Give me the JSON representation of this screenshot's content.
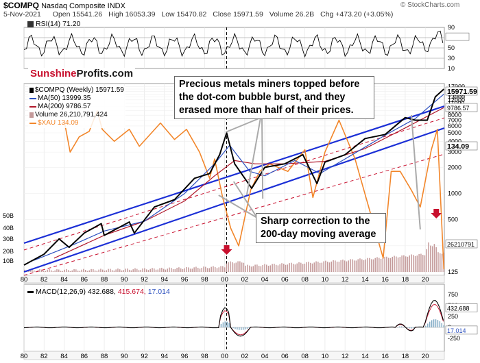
{
  "header": {
    "symbol": "$COMPQ",
    "name": "Nasdaq Composite INDX",
    "date": "5-Nov-2021",
    "open_label": "Open",
    "open": "15541.26",
    "high_label": "High",
    "high": "16053.39",
    "low_label": "Low",
    "low": "15470.82",
    "close_label": "Close",
    "close": "15971.59",
    "volume_label": "Volume",
    "volume": "26.2B",
    "chg_label": "Chg",
    "chg": "+473.20 (+3.05%)",
    "copyright": "© StockCharts.com"
  },
  "brand": {
    "part1": "Sunshine",
    "part2": "Profits.com"
  },
  "rsi_label": "RSI(14) 71.20",
  "legend": [
    {
      "text": "$COMPQ (Weekly) 15971.59",
      "color": "#000000",
      "kind": "candle"
    },
    {
      "text": "MA(50) 13999.35",
      "color": "#2b4fbf",
      "kind": "line"
    },
    {
      "text": "MA(200) 9786.57",
      "color": "#b0172a",
      "kind": "line"
    },
    {
      "text": "Volume 26,210,791,424",
      "color": "#9e6b6b",
      "kind": "box"
    },
    {
      "text": "$XAU 134.09",
      "color": "#f2862a",
      "kind": "line"
    }
  ],
  "macd": {
    "label": "MACD(12,26,9)",
    "v1": "432.688,",
    "v2": "415.674,",
    "v3": "17.014",
    "c1": "#000000",
    "c2": "#c8102e",
    "c3": "#2b4fbf"
  },
  "annotations": {
    "top": [
      "Precious metals miners topped before",
      "the dot-com bubble burst, and they",
      "erased more than half of their prices."
    ],
    "bottom": [
      "Sharp correction to the",
      "200-day moving average"
    ]
  },
  "colors": {
    "price": "#000000",
    "ma50": "#2b4fbf",
    "ma200": "#b0172a",
    "xau": "#f2862a",
    "volume": "#c49a9a",
    "arrow": "#c8102e",
    "channel": "#1b2fd6",
    "dashed": "#c8102e"
  },
  "chart_data": [
    {
      "type": "line",
      "panel": "RSI",
      "series": [
        {
          "name": "RSI(14)",
          "last": 71.2
        }
      ],
      "y_ticks": [
        "90",
        "71.20",
        "50",
        "30",
        "10"
      ],
      "yticks_numeric": [
        90,
        70,
        50,
        30,
        10
      ]
    },
    {
      "type": "line",
      "panel": "price",
      "scale": "log",
      "x_ticks": [
        "80",
        "82",
        "84",
        "86",
        "88",
        "90",
        "92",
        "94",
        "96",
        "98",
        "00",
        "02",
        "04",
        "06",
        "08",
        "10",
        "12",
        "14",
        "16",
        "18",
        "20"
      ],
      "y_ticks_right": [
        "17000",
        "16000",
        "15000",
        "14000",
        "13000",
        "12000",
        "11000",
        "10000",
        "9000",
        "8000",
        "7000",
        "6000",
        "5000",
        "4000",
        "3000",
        "2000",
        "1000",
        "500",
        "250",
        "125"
      ],
      "y_ticks_left_volume": [
        "50B",
        "40B",
        "30B",
        "20B",
        "10B"
      ],
      "tag_labels": {
        "price": "15971.59",
        "ma50": "13999.35",
        "ma200": "9786.57",
        "xau": "134.09",
        "volume": "26210791"
      },
      "series": [
        {
          "name": "$COMPQ (Weekly)",
          "x": [
            1980,
            1982,
            1983.5,
            1984.5,
            1986,
            1987.7,
            1988,
            1990.5,
            1991,
            1993,
            1995,
            1997,
            1998.5,
            1999.5,
            2000.2,
            2001,
            2002.7,
            2004,
            2006,
            2007.8,
            2009.2,
            2010,
            2012,
            2014,
            2016,
            2018,
            2019,
            2020.2,
            2021,
            2021.85
          ],
          "y": [
            150,
            200,
            300,
            240,
            350,
            450,
            330,
            470,
            350,
            700,
            850,
            1500,
            1700,
            2800,
            5000,
            2200,
            1150,
            2000,
            2200,
            2800,
            1300,
            2300,
            2800,
            4300,
            4800,
            7500,
            7000,
            7000,
            13000,
            15971.59
          ]
        },
        {
          "name": "MA(50)",
          "x": [
            1981,
            1985,
            1988,
            1992,
            1996,
            1999,
            2000.5,
            2002.5,
            2004,
            2007,
            2009.5,
            2012,
            2016,
            2019,
            2021.85
          ],
          "y": [
            170,
            260,
            370,
            480,
            1000,
            2200,
            3600,
            1800,
            1600,
            2400,
            1700,
            2500,
            4700,
            7300,
            13999.35
          ]
        },
        {
          "name": "MA(200)",
          "x": [
            1983,
            1988,
            1992,
            1996,
            1999,
            2001,
            2003,
            2006,
            2010,
            2014,
            2018,
            2021.85
          ],
          "y": [
            180,
            330,
            480,
            820,
            1600,
            2400,
            2200,
            2200,
            2350,
            3300,
            5700,
            9786.57
          ]
        },
        {
          "name": "$XAU",
          "x": [
            1984,
            1984.6,
            1985.5,
            1986.5,
            1987.3,
            1987.8,
            1989,
            1990.5,
            1991.5,
            1993.6,
            1995,
            1996.2,
            1997.5,
            1998.5,
            1999,
            1999.8,
            2000.6,
            2001.4,
            2002.6,
            2003.5,
            2004.5,
            2006.3,
            2008,
            2008.8,
            2010,
            2011.4,
            2013,
            2015.8,
            2016.6,
            2017.5,
            2018.6,
            2019.5,
            2020.6,
            2021.2,
            2021.85
          ],
          "y": [
            7000,
            3000,
            4500,
            5200,
            9000,
            5500,
            4000,
            5500,
            3500,
            6500,
            4200,
            5500,
            3000,
            1500,
            2500,
            900,
            400,
            250,
            1100,
            1800,
            2200,
            1800,
            3200,
            900,
            3000,
            7000,
            2500,
            180,
            1800,
            1800,
            1100,
            700,
            3200,
            5500,
            134.09
          ]
        }
      ]
    },
    {
      "type": "line",
      "panel": "MACD",
      "series": [
        {
          "name": "MACD(12,26,9)",
          "last": 432.688
        },
        {
          "name": "signal",
          "last": 415.674
        },
        {
          "name": "histogram",
          "last": 17.014
        }
      ],
      "y_ticks": [
        "750",
        "500",
        "250",
        "0",
        "-250"
      ],
      "yticks_numeric": [
        750,
        500,
        250,
        0,
        -250
      ],
      "x_ticks": [
        "80",
        "82",
        "84",
        "86",
        "88",
        "90",
        "92",
        "94",
        "96",
        "98",
        "00",
        "02",
        "04",
        "06",
        "08",
        "10",
        "12",
        "14",
        "16",
        "18",
        "20"
      ]
    }
  ]
}
